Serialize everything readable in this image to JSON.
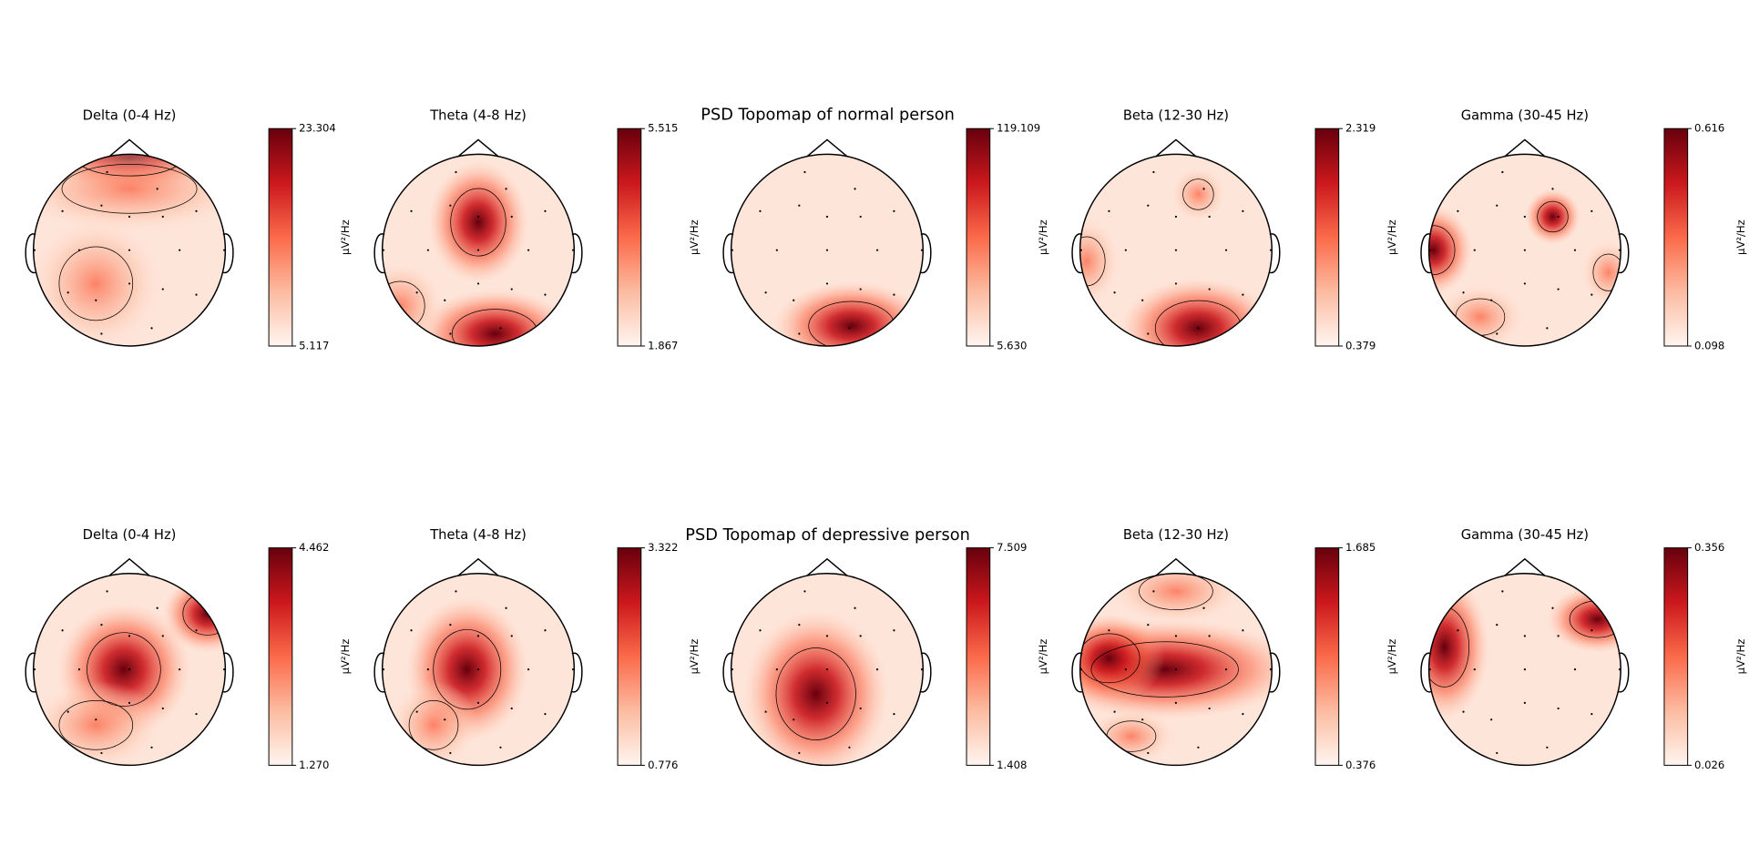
{
  "figure_titles": [
    "PSD Topomap of normal person",
    "PSD Topomap of depressive person"
  ],
  "chart_data": [
    {
      "type": "topomap",
      "title": "Delta (0-4 Hz)",
      "colorbar_label": "µV²/Hz",
      "clim": [
        5.117,
        23.304
      ],
      "cticks": [
        5.117,
        23.304
      ],
      "cmap": "Reds"
    },
    {
      "type": "topomap",
      "title": "Theta (4-8 Hz)",
      "colorbar_label": "µV²/Hz",
      "clim": [
        1.867,
        5.515
      ],
      "cticks": [
        1.867,
        5.515
      ],
      "cmap": "Reds"
    },
    {
      "type": "topomap",
      "colorbar_label": "µV²/Hz",
      "clim": [
        5.63,
        119.109
      ],
      "cticks": [
        {
          "value": 5.63,
          "label": "5.630"
        },
        119.109
      ],
      "cmap": "Reds"
    },
    {
      "type": "topomap",
      "title": "Beta (12-30 Hz)",
      "colorbar_label": "µV²/Hz",
      "clim": [
        0.379,
        2.319
      ],
      "cticks": [
        0.379,
        2.319
      ],
      "cmap": "Reds"
    },
    {
      "type": "topomap",
      "title": "Gamma (30-45 Hz)",
      "colorbar_label": "µV²/Hz",
      "clim": [
        0.098,
        0.616
      ],
      "cticks": [
        0.098,
        0.616
      ],
      "cmap": "Reds"
    },
    {
      "type": "topomap",
      "title": "Delta (0-4 Hz)",
      "colorbar_label": "µV²/Hz",
      "clim": [
        1.27,
        4.462
      ],
      "cticks": [
        {
          "value": 1.27,
          "label": "1.270"
        },
        4.462
      ],
      "cmap": "Reds"
    },
    {
      "type": "topomap",
      "title": "Theta (4-8 Hz)",
      "colorbar_label": "µV²/Hz",
      "clim": [
        0.776,
        3.322
      ],
      "cticks": [
        0.776,
        3.322
      ],
      "cmap": "Reds"
    },
    {
      "type": "topomap",
      "colorbar_label": "µV²/Hz",
      "clim": [
        1.408,
        7.509
      ],
      "cticks": [
        1.408,
        7.509
      ],
      "cmap": "Reds"
    },
    {
      "type": "topomap",
      "title": "Beta (12-30 Hz)",
      "colorbar_label": "µV²/Hz",
      "clim": [
        0.376,
        1.685
      ],
      "cticks": [
        0.376,
        1.685
      ],
      "cmap": "Reds"
    },
    {
      "type": "topomap",
      "title": "Gamma (30-45 Hz)",
      "colorbar_label": "µV²/Hz",
      "clim": [
        0.026,
        0.356
      ],
      "cticks": [
        0.026,
        0.356
      ],
      "cmap": "Reds"
    }
  ]
}
